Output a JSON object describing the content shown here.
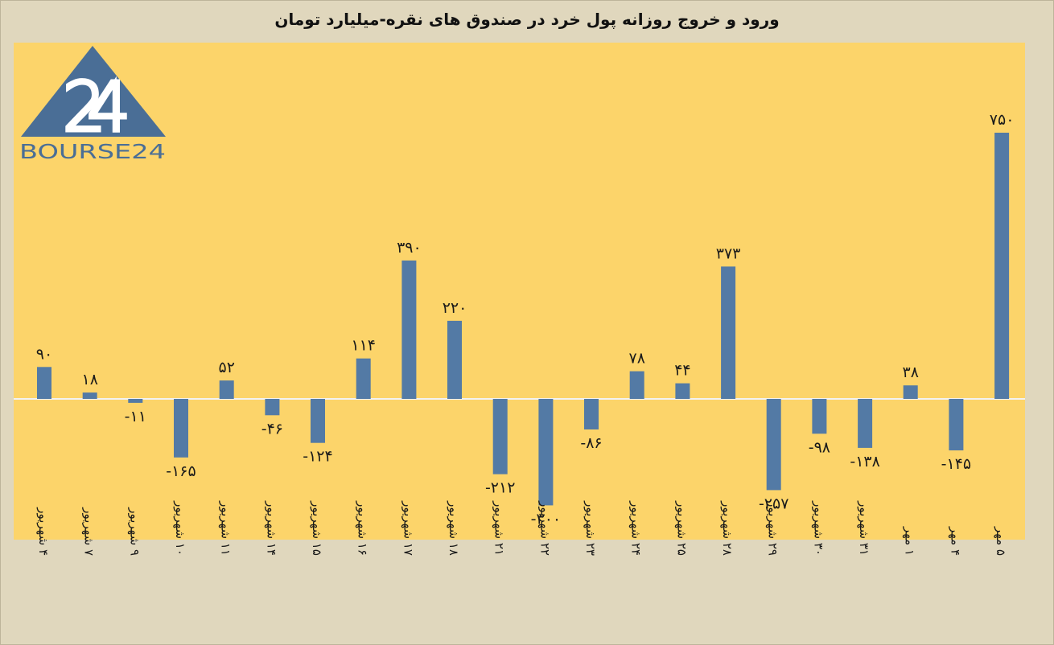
{
  "title": "ورود و خروج روزانه پول خرد در صندوق های نقره-میلیارد تومان",
  "logo": {
    "text": "BOURSE24",
    "number": "24"
  },
  "colors": {
    "background": "#e0d7bd",
    "plot_area": "#fcd46a",
    "bar": "#537aa5",
    "logo": "#4a6e96"
  },
  "chart_data": {
    "type": "bar",
    "title": "ورود و خروج روزانه پول خرد در صندوق های نقره-میلیارد تومان",
    "categories": [
      "۴ شهریور",
      "۷ شهریور",
      "۹ شهریور",
      "۱۰ شهریور",
      "۱۱ شهریور",
      "۱۴ شهریور",
      "۱۵ شهریور",
      "۱۶ شهریور",
      "۱۷ شهریور",
      "۱۸ شهریور",
      "۲۱ شهریور",
      "۲۲ شهریور",
      "۲۳ شهریور",
      "۲۴ شهریور",
      "۲۵ شهریور",
      "۲۸ شهریور",
      "۲۹ شهریور",
      "۳۰ شهریور",
      "۳۱ شهریور",
      "۱ مهر",
      "۴ مهر",
      "۵ مهر"
    ],
    "values": [
      90,
      18,
      -11,
      -165,
      52,
      -46,
      -124,
      114,
      390,
      220,
      -212,
      -300,
      -86,
      78,
      44,
      373,
      -257,
      -98,
      -138,
      38,
      -145,
      750
    ],
    "value_labels": [
      "۹۰",
      "۱۸",
      "-۱۱",
      "-۱۶۵",
      "۵۲",
      "-۴۶",
      "-۱۲۴",
      "۱۱۴",
      "۳۹۰",
      "۲۲۰",
      "-۲۱۲",
      "-۳۰۰",
      "-۸۶",
      "۷۸",
      "۴۴",
      "۳۷۳",
      "-۲۵۷",
      "-۹۸",
      "-۱۳۸",
      "۳۸",
      "-۱۴۵",
      "۷۵۰"
    ],
    "xlabel": "",
    "ylabel": "",
    "grid": false,
    "legend": "none"
  }
}
